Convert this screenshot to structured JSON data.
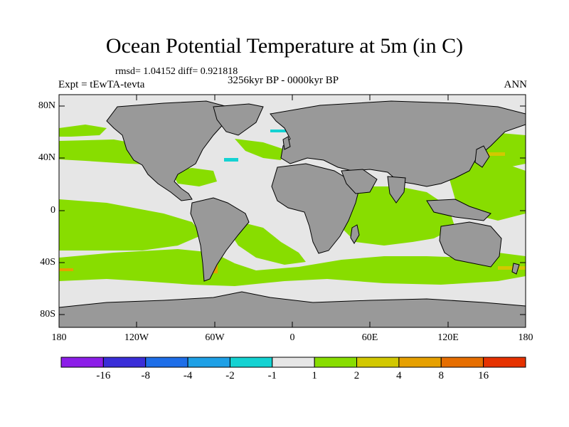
{
  "title": "Ocean Potential Temperature at 5m (in C)",
  "stats": "rmsd= 1.04152 diff= 0.921818",
  "experiment": "Expt = tEwTA-tevta",
  "period": "3256kyr BP - 0000kyr BP",
  "season": "ANN",
  "lat_labels": [
    "80N",
    "40N",
    "0",
    "40S",
    "80S"
  ],
  "lon_labels": [
    "180",
    "120W",
    "60W",
    "0",
    "60E",
    "120E",
    "180"
  ],
  "colorbar": {
    "labels": [
      "-16",
      "-8",
      "-4",
      "-2",
      "-1",
      "1",
      "2",
      "4",
      "8",
      "16"
    ],
    "colors": [
      "#8c1ee8",
      "#3a2ed8",
      "#1e6ee8",
      "#1ea0e6",
      "#14d2d2",
      "#e6e6e6",
      "#88dd00",
      "#d2c800",
      "#e6a000",
      "#e66e00",
      "#e63200"
    ]
  },
  "colors": {
    "land": "#999999",
    "ocean_neutral": "#e6e6e6",
    "warm_2": "#88dd00",
    "warm_4": "#d2c800",
    "warm_8": "#e6a000",
    "cool_2": "#14d2d2"
  }
}
